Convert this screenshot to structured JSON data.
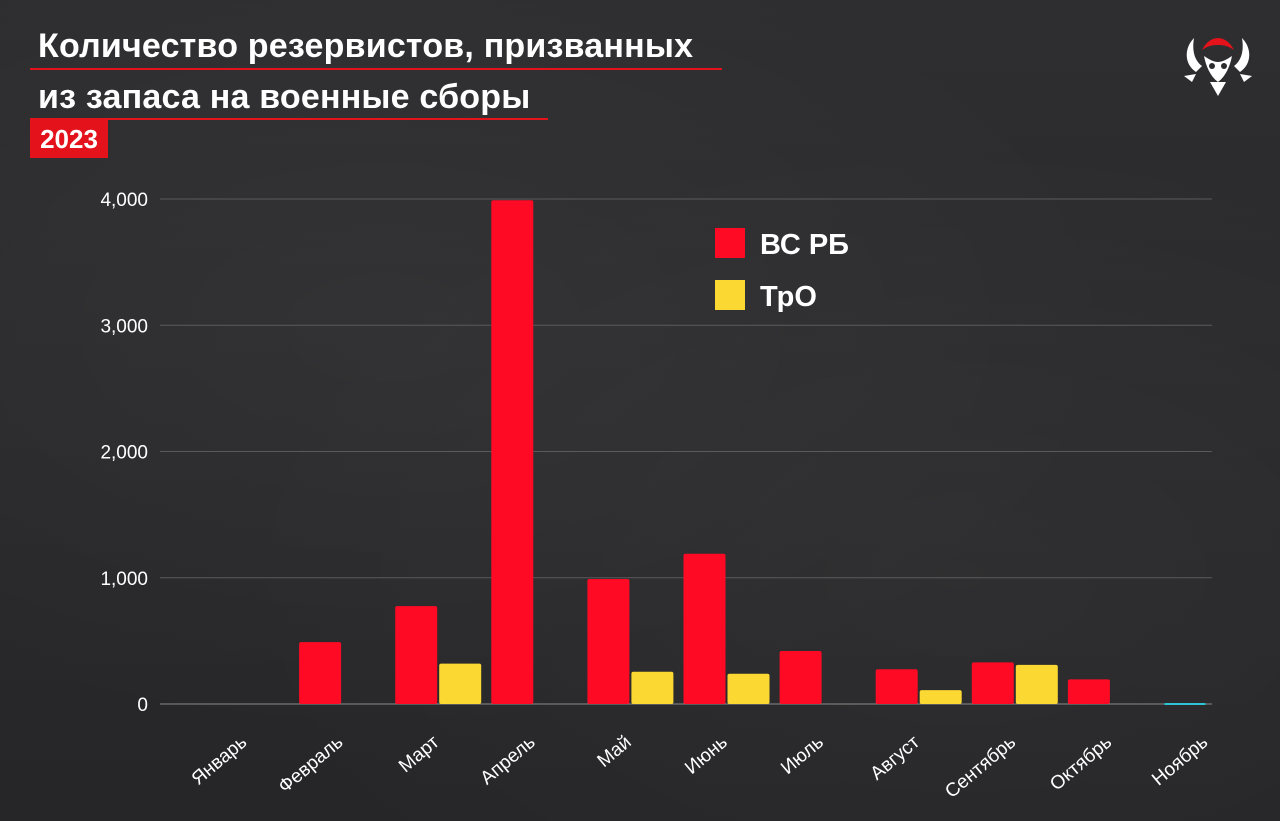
{
  "title_line1": "Количество резервистов, призванных",
  "title_line2": "из запаса на военные сборы",
  "year": "2023",
  "logo_icon": "demon-skull-logo-icon",
  "colors": {
    "accent": "#e3121b",
    "series1": "#ff0a24",
    "series2": "#fcd832",
    "zero_bar": "#2ec4d6"
  },
  "chart_data": {
    "type": "bar",
    "categories": [
      "Январь",
      "Февраль",
      "Март",
      "Апрель",
      "Май",
      "Июнь",
      "Июль",
      "Август",
      "Сентябрь",
      "Октябрь",
      "Ноябрь"
    ],
    "series": [
      {
        "name": "ВС РБ",
        "color": "#ff0a24",
        "values": [
          0,
          490,
          775,
          3990,
          990,
          1190,
          420,
          275,
          330,
          195,
          5
        ]
      },
      {
        "name": "ТрО",
        "color": "#fcd832",
        "values": [
          0,
          0,
          320,
          0,
          255,
          240,
          0,
          110,
          310,
          0,
          0
        ]
      }
    ],
    "y_ticks": [
      "0",
      "1,000",
      "2,000",
      "3,000",
      "4,000"
    ],
    "ylim": [
      0,
      4000
    ],
    "grid": true,
    "legend": "top-center",
    "title": "Количество резервистов, призванных из запаса на военные сборы",
    "xlabel": "",
    "ylabel": ""
  }
}
